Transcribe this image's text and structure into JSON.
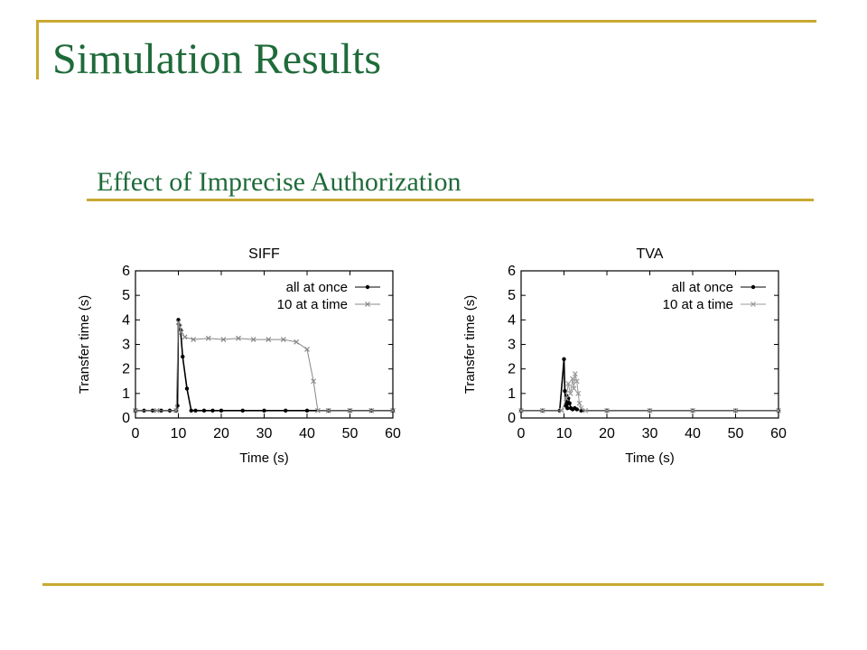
{
  "slide": {
    "title": "Simulation Results",
    "subtitle": "Effect of Imprecise Authorization",
    "accent_color": "#c9a930",
    "title_color": "#1f6b3a"
  },
  "chart_data": [
    {
      "type": "scatter",
      "title": "SIFF",
      "xlabel": "Time (s)",
      "ylabel": "Transfer time (s)",
      "xlim": [
        0,
        60
      ],
      "ylim": [
        0,
        6
      ],
      "xticks": [
        0,
        10,
        20,
        30,
        40,
        50,
        60
      ],
      "yticks": [
        0,
        1,
        2,
        3,
        4,
        5,
        6
      ],
      "grid": false,
      "legend_position": "top-right",
      "series": [
        {
          "name": "all at once",
          "marker": "dot",
          "color": "#000000",
          "x": [
            0,
            2,
            4,
            6,
            8,
            9.5,
            9.8,
            10,
            10.2,
            10.5,
            11,
            12,
            13,
            14,
            16,
            18,
            20,
            25,
            30,
            35,
            40,
            45,
            50,
            55,
            60
          ],
          "y": [
            0.3,
            0.3,
            0.3,
            0.3,
            0.3,
            0.3,
            0.5,
            4.0,
            3.8,
            3.6,
            2.5,
            1.2,
            0.3,
            0.3,
            0.3,
            0.3,
            0.3,
            0.3,
            0.3,
            0.3,
            0.3,
            0.3,
            0.3,
            0.3,
            0.3
          ]
        },
        {
          "name": "10 at a time",
          "marker": "x",
          "color": "#888888",
          "x": [
            0,
            5,
            9.5,
            10,
            10.3,
            10.7,
            11.5,
            13.5,
            17,
            20.5,
            24,
            27.5,
            31,
            34.5,
            37.5,
            40,
            41.5,
            42.5,
            45,
            50,
            55,
            60
          ],
          "y": [
            0.3,
            0.3,
            0.3,
            3.9,
            3.7,
            3.5,
            3.3,
            3.2,
            3.25,
            3.2,
            3.25,
            3.2,
            3.2,
            3.2,
            3.1,
            2.8,
            1.5,
            0.3,
            0.3,
            0.3,
            0.3,
            0.3
          ]
        }
      ]
    },
    {
      "type": "scatter",
      "title": "TVA",
      "xlabel": "Time (s)",
      "ylabel": "Transfer time (s)",
      "xlim": [
        0,
        60
      ],
      "ylim": [
        0,
        6
      ],
      "xticks": [
        0,
        10,
        20,
        30,
        40,
        50,
        60
      ],
      "yticks": [
        0,
        1,
        2,
        3,
        4,
        5,
        6
      ],
      "grid": false,
      "legend_position": "top-right",
      "series": [
        {
          "name": "all at once",
          "marker": "dot",
          "color": "#000000",
          "x": [
            0,
            5,
            9,
            10,
            10.2,
            10.4,
            10.6,
            10.8,
            11,
            11.3,
            11.6,
            12,
            12.5,
            13,
            14,
            20,
            30,
            40,
            50,
            60
          ],
          "y": [
            0.3,
            0.3,
            0.3,
            2.4,
            1.1,
            0.5,
            0.9,
            0.4,
            0.8,
            0.6,
            0.4,
            0.35,
            0.4,
            0.35,
            0.3,
            0.3,
            0.3,
            0.3,
            0.3,
            0.3
          ]
        },
        {
          "name": "10 at a time",
          "marker": "x",
          "color": "#999999",
          "x": [
            0,
            5,
            9.5,
            10.5,
            11,
            11.5,
            12,
            12.3,
            12.6,
            13,
            13.3,
            13.6,
            14,
            15,
            20,
            30,
            40,
            50,
            60
          ],
          "y": [
            0.3,
            0.3,
            0.3,
            0.8,
            1.4,
            1.0,
            1.6,
            1.2,
            1.8,
            1.5,
            1.0,
            0.6,
            0.4,
            0.3,
            0.3,
            0.3,
            0.3,
            0.3,
            0.3
          ]
        }
      ]
    }
  ]
}
